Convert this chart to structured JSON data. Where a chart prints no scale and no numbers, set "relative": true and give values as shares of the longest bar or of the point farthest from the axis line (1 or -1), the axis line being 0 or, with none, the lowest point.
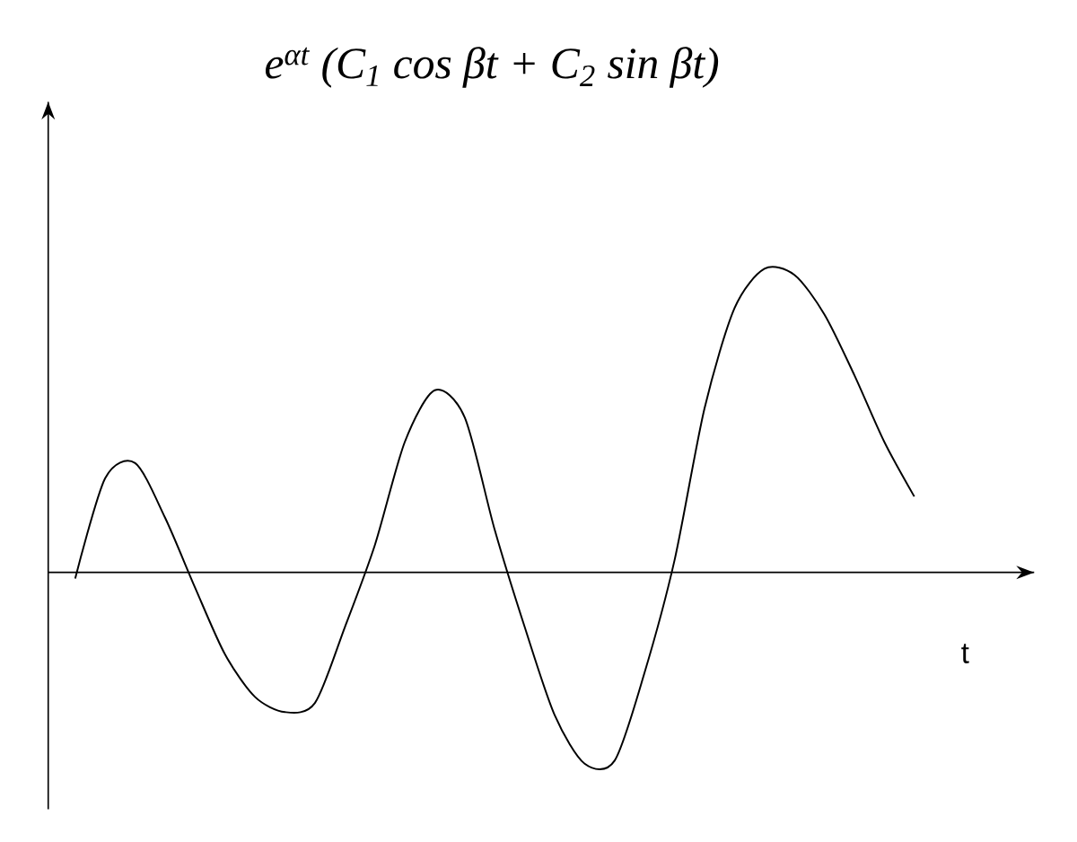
{
  "chart_data": {
    "type": "line",
    "title": "e$^{αt}$ (C$_{1}$ cos βt + C$_{2}$ sin βt)",
    "xlabel": "t",
    "relative": true,
    "marker": "none",
    "line_style": "solid",
    "categories": [
      null,
      null,
      null,
      null,
      null,
      null,
      null,
      null,
      null,
      null,
      null,
      null,
      null,
      null,
      null,
      null,
      null,
      null,
      null,
      null,
      null,
      null,
      null,
      null,
      null,
      null,
      null,
      null,
      null
    ],
    "series": [
      {
        "color": "#000000",
        "values": [
          -0.02,
          0.31,
          0.36,
          0.18,
          -0.05,
          -0.27,
          -0.41,
          -0.46,
          -0.43,
          -0.18,
          0.09,
          0.43,
          0.6,
          0.51,
          0.14,
          -0.18,
          -0.47,
          -0.63,
          -0.62,
          -0.33,
          0.04,
          0.54,
          0.87,
          1.0,
          0.98,
          0.85,
          0.65,
          0.43,
          0.25
        ]
      }
    ]
  }
}
